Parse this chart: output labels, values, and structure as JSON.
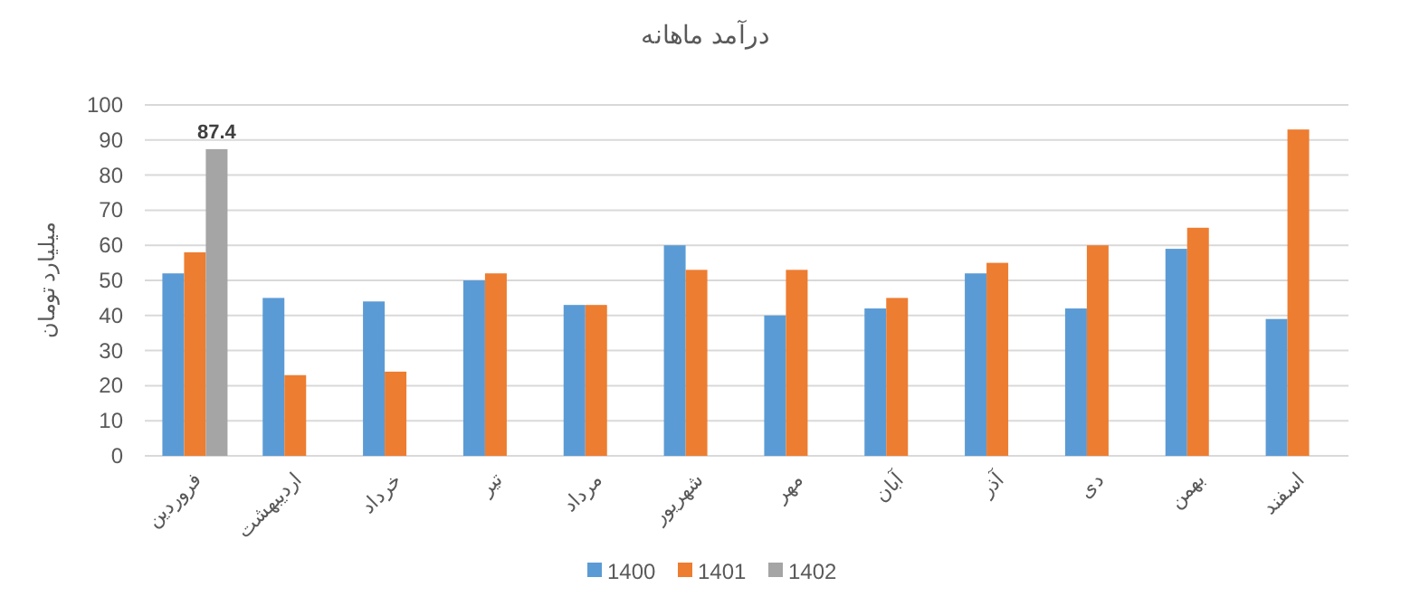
{
  "chart_data": {
    "type": "bar",
    "title": "درآمد ماهانه",
    "ylabel": "میلیارد تومان",
    "categories": [
      "فروردین",
      "اردیبهشت",
      "خرداد",
      "تیر",
      "مرداد",
      "شهریور",
      "مهر",
      "آبان",
      "آذر",
      "دی",
      "بهمن",
      "اسفند"
    ],
    "series": [
      {
        "name": "1400",
        "color": "#5b9bd5",
        "values": [
          52,
          45,
          44,
          50,
          43,
          60,
          40,
          42,
          52,
          42,
          59,
          39
        ]
      },
      {
        "name": "1401",
        "color": "#ed7d31",
        "values": [
          58,
          23,
          24,
          52,
          43,
          53,
          53,
          45,
          55,
          60,
          65,
          93
        ]
      },
      {
        "name": "1402",
        "color": "#a5a5a5",
        "values": [
          87.4,
          null,
          null,
          null,
          null,
          null,
          null,
          null,
          null,
          null,
          null,
          null
        ],
        "value_labels": [
          "87.4",
          null,
          null,
          null,
          null,
          null,
          null,
          null,
          null,
          null,
          null,
          null
        ]
      }
    ],
    "ylim": [
      0,
      100
    ],
    "yticks": [
      0,
      10,
      20,
      30,
      40,
      50,
      60,
      70,
      80,
      90,
      100
    ],
    "grid": "y",
    "legend": "bottom"
  }
}
